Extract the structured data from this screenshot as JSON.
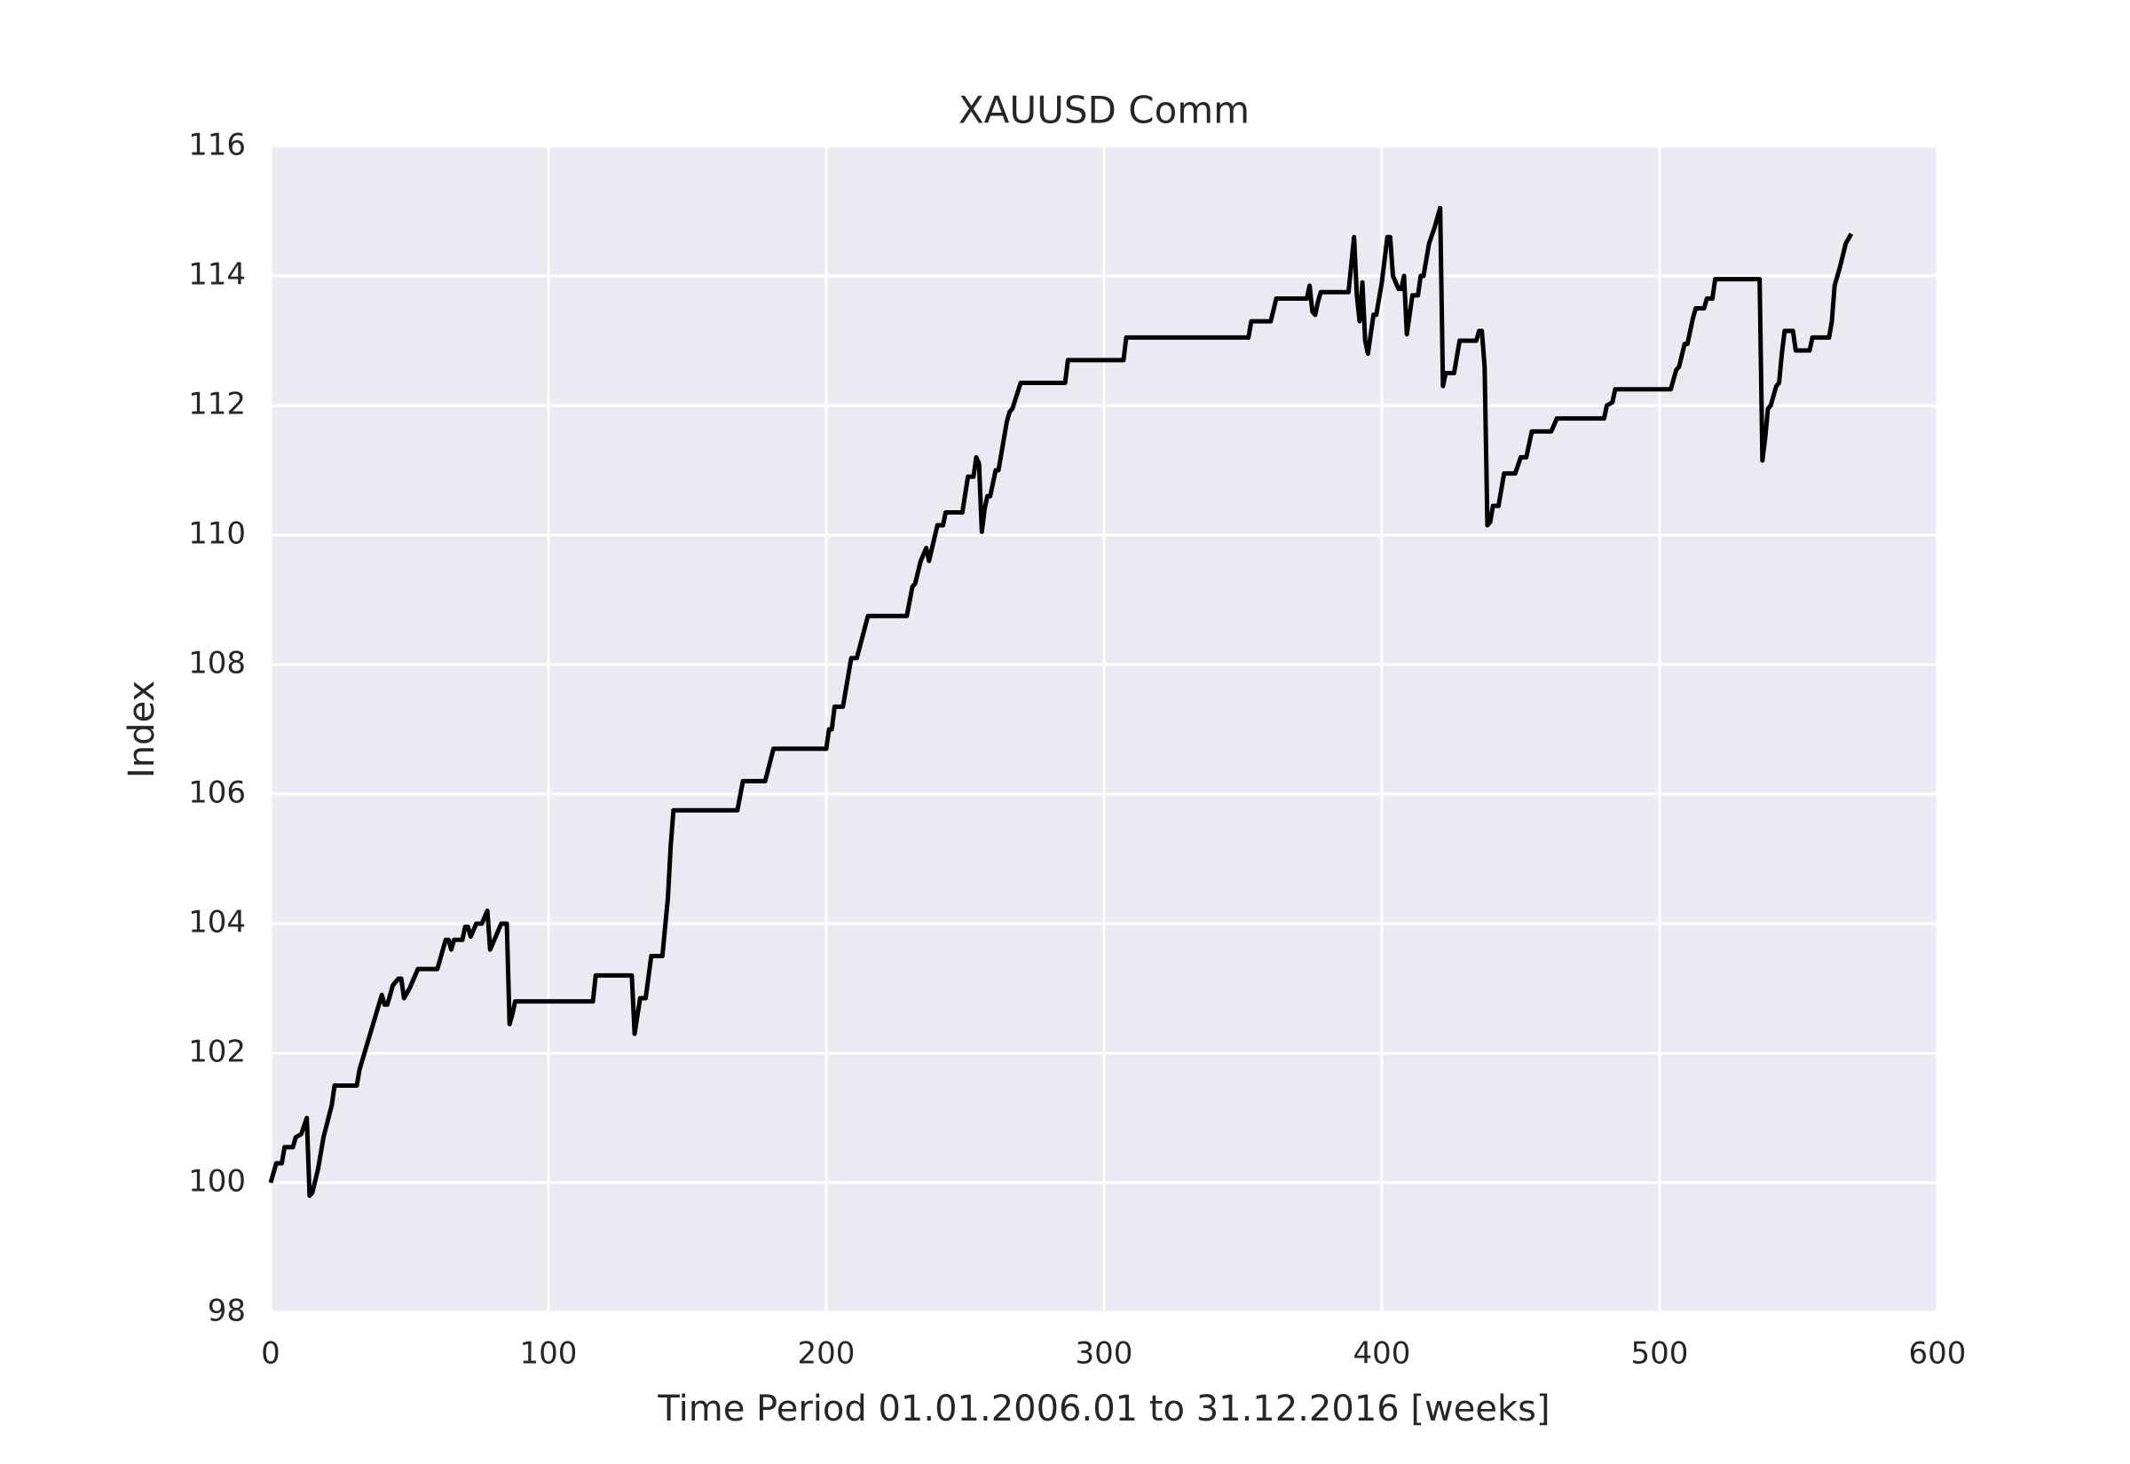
{
  "chart_data": {
    "type": "line",
    "title": "XAUUSD Comm",
    "xlabel": "Time Period 01.01.2006.01 to 31.12.2016 [weeks]",
    "ylabel": "Index",
    "xlim": [
      0,
      600
    ],
    "xticks": [
      0,
      100,
      200,
      300,
      400,
      500,
      600
    ],
    "ylim": [
      98,
      116
    ],
    "yticks": [
      98,
      100,
      102,
      104,
      106,
      108,
      110,
      112,
      114,
      116
    ],
    "grid": true,
    "background": "#eaeaf2",
    "grid_color": "#ffffff",
    "x": [
      0,
      2,
      4,
      5,
      8,
      9,
      11,
      13,
      14,
      15,
      17,
      19,
      22,
      23,
      31,
      32,
      40,
      41,
      42,
      44,
      46,
      47,
      48,
      50,
      53,
      60,
      63,
      64,
      65,
      66,
      69,
      70,
      71,
      72,
      74,
      76,
      78,
      79,
      81,
      83,
      85,
      86,
      87,
      88,
      116,
      117,
      130,
      131,
      133,
      135,
      137,
      141,
      143,
      144,
      145,
      168,
      170,
      178,
      181,
      200,
      201,
      202,
      203,
      206,
      209,
      211,
      215,
      229,
      231,
      232,
      234,
      236,
      237,
      240,
      242,
      243,
      249,
      251,
      253,
      254,
      255,
      256,
      257,
      258,
      259,
      261,
      262,
      265,
      266,
      267,
      270,
      286,
      287,
      307,
      308,
      352,
      353,
      360,
      362,
      373,
      374,
      375,
      376,
      377,
      378,
      388,
      390,
      391,
      392,
      393,
      394,
      395,
      397,
      398,
      400,
      402,
      403,
      404,
      406,
      407,
      408,
      409,
      411,
      413,
      414,
      415,
      417,
      419,
      421,
      422,
      423,
      426,
      428,
      434,
      435,
      436,
      437,
      438,
      439,
      440,
      442,
      444,
      448,
      450,
      452,
      454,
      461,
      463,
      480,
      481,
      483,
      484,
      504,
      506,
      507,
      509,
      510,
      512,
      513,
      516,
      517,
      519,
      520,
      536,
      537,
      538,
      539,
      540,
      542,
      543,
      544,
      545,
      548,
      549,
      554,
      555,
      561,
      562,
      563,
      565,
      567,
      569
    ],
    "series": [
      {
        "color": "#000000",
        "values": [
          100.0,
          100.3,
          100.3,
          100.55,
          100.55,
          100.7,
          100.75,
          101.0,
          99.8,
          99.85,
          100.2,
          100.7,
          101.2,
          101.5,
          101.5,
          101.75,
          102.9,
          102.75,
          102.75,
          103.05,
          103.15,
          103.15,
          102.85,
          103.0,
          103.3,
          103.3,
          103.75,
          103.75,
          103.6,
          103.75,
          103.75,
          103.95,
          103.95,
          103.8,
          104.0,
          104.0,
          104.2,
          103.6,
          103.8,
          104.0,
          104.0,
          102.45,
          102.6,
          102.8,
          102.8,
          103.2,
          103.2,
          102.3,
          102.85,
          102.85,
          103.5,
          103.5,
          104.4,
          105.2,
          105.75,
          105.75,
          106.2,
          106.2,
          106.7,
          106.7,
          107.0,
          107.0,
          107.35,
          107.35,
          108.1,
          108.1,
          108.75,
          108.75,
          109.2,
          109.25,
          109.6,
          109.8,
          109.6,
          110.15,
          110.15,
          110.35,
          110.35,
          110.9,
          110.9,
          111.2,
          111.1,
          110.05,
          110.4,
          110.6,
          110.6,
          111.0,
          111.0,
          111.75,
          111.9,
          111.95,
          112.35,
          112.35,
          112.7,
          112.7,
          113.05,
          113.05,
          113.3,
          113.3,
          113.65,
          113.65,
          113.85,
          113.45,
          113.4,
          113.6,
          113.75,
          113.75,
          114.6,
          113.7,
          113.3,
          113.9,
          113.0,
          112.8,
          113.4,
          113.4,
          113.9,
          114.6,
          114.6,
          114.0,
          113.8,
          113.8,
          114.0,
          113.1,
          113.7,
          113.7,
          114.0,
          114.0,
          114.5,
          114.75,
          115.05,
          112.3,
          112.5,
          112.5,
          113.0,
          113.0,
          113.15,
          113.15,
          112.6,
          110.15,
          110.2,
          110.45,
          110.45,
          110.95,
          110.95,
          111.2,
          111.2,
          111.6,
          111.6,
          111.8,
          111.8,
          112.0,
          112.05,
          112.25,
          112.25,
          112.55,
          112.6,
          112.95,
          112.95,
          113.35,
          113.5,
          113.5,
          113.65,
          113.65,
          113.95,
          113.95,
          111.15,
          111.5,
          111.95,
          112.0,
          112.3,
          112.35,
          112.8,
          113.15,
          113.15,
          112.85,
          112.85,
          113.05,
          113.05,
          113.3,
          113.85,
          114.15,
          114.5,
          114.65
        ]
      }
    ]
  }
}
